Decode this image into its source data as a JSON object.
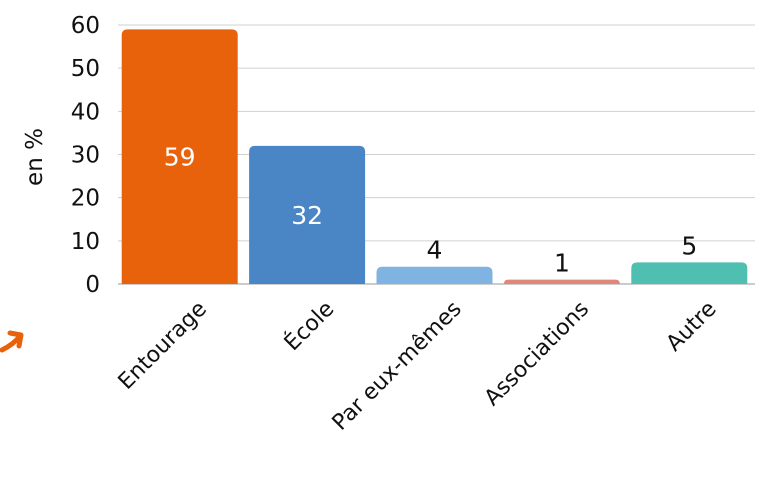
{
  "chart_data": {
    "type": "bar",
    "title": "",
    "xlabel": "",
    "ylabel": "en %",
    "ylim": [
      0,
      60
    ],
    "yticks": [
      "0",
      "10",
      "20",
      "30",
      "40",
      "50",
      "60"
    ],
    "grid": true,
    "categories": [
      "Entourage",
      "École",
      "Par eux-mêmes",
      "Associations",
      "Autre"
    ],
    "values": [
      59,
      32,
      4,
      1,
      5
    ],
    "data_labels": [
      "59",
      "32",
      "4",
      "1",
      "5"
    ],
    "colors": [
      "#e8610b",
      "#4a86c5",
      "#7fb3e1",
      "#e1877a",
      "#4fbfb2"
    ],
    "label_colors": [
      "#ffffff",
      "#ffffff",
      "#111111",
      "#111111",
      "#111111"
    ],
    "label_inside": [
      true,
      true,
      false,
      false,
      false
    ]
  },
  "decoration": {
    "arrow_icon": "right-arrow-icon",
    "arrow_color": "#e8610b"
  }
}
